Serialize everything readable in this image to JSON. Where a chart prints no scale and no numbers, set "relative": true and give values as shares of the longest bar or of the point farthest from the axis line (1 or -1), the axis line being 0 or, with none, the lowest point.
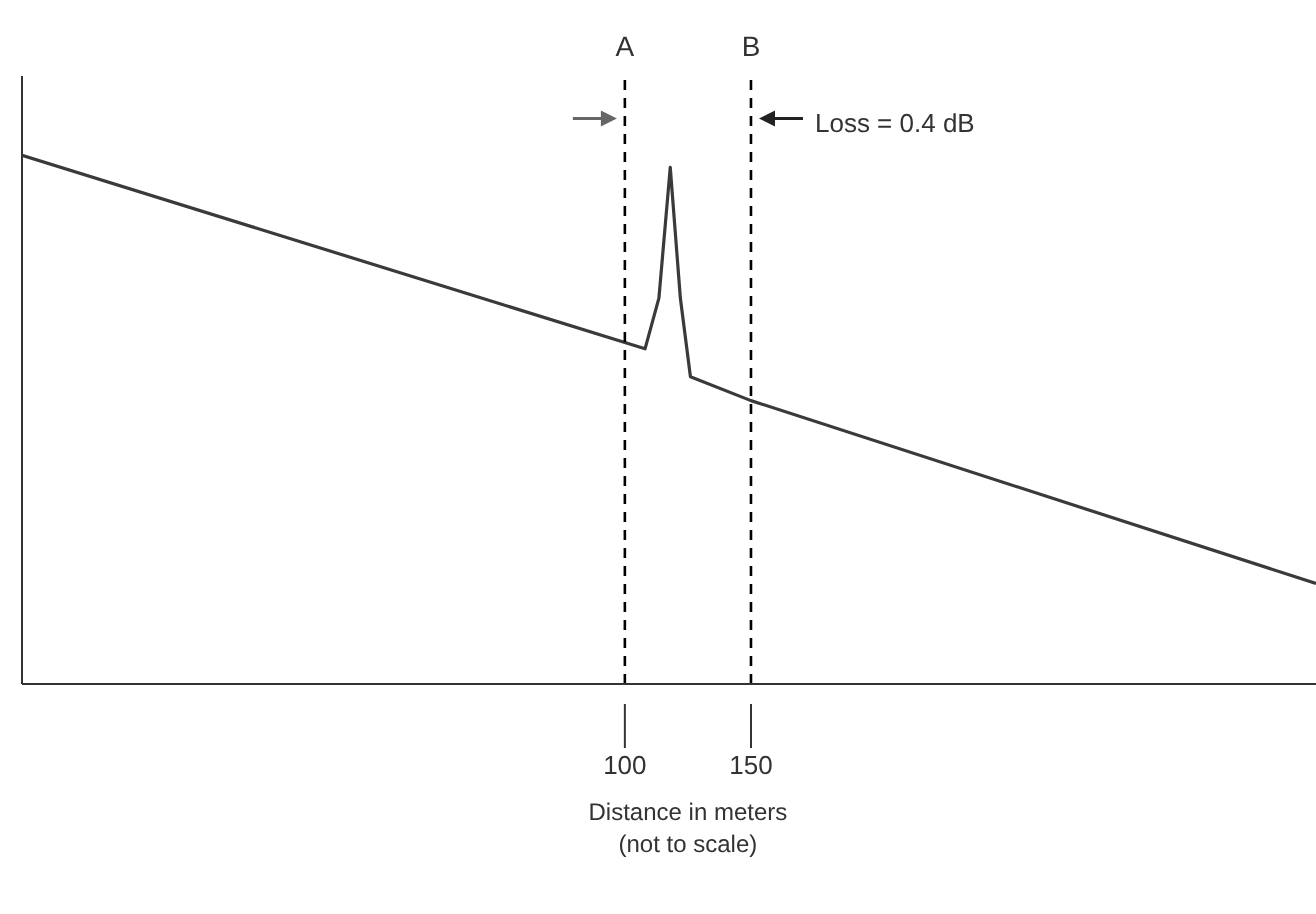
{
  "chart_data": {
    "type": "line",
    "relative": true,
    "xlabel": "Distance in meters\n(not to scale)",
    "xlim": [
      -139,
      374
    ],
    "xticks": [
      100,
      150
    ],
    "series": [
      {
        "color": "#3a3a3a",
        "x": [
          -139,
          108,
          113.5,
          118,
          122,
          126,
          150,
          374
        ],
        "values": [
          1,
          0.634,
          0.73,
          0.977,
          0.73,
          0.581,
          0.536,
          0.19
        ]
      }
    ],
    "ref_lines": [
      {
        "axis": "x",
        "value": 100,
        "label": "A",
        "color": "#000000",
        "line_style": "dashed"
      },
      {
        "axis": "x",
        "value": 150,
        "label": "B",
        "color": "#000000",
        "line_style": "dashed"
      }
    ],
    "annotations": [
      {
        "text": "Loss = 0.4 dB",
        "x": 150,
        "y": 1.06
      }
    ],
    "grid": false,
    "legend": false,
    "marker": "none",
    "line_style": "solid"
  }
}
